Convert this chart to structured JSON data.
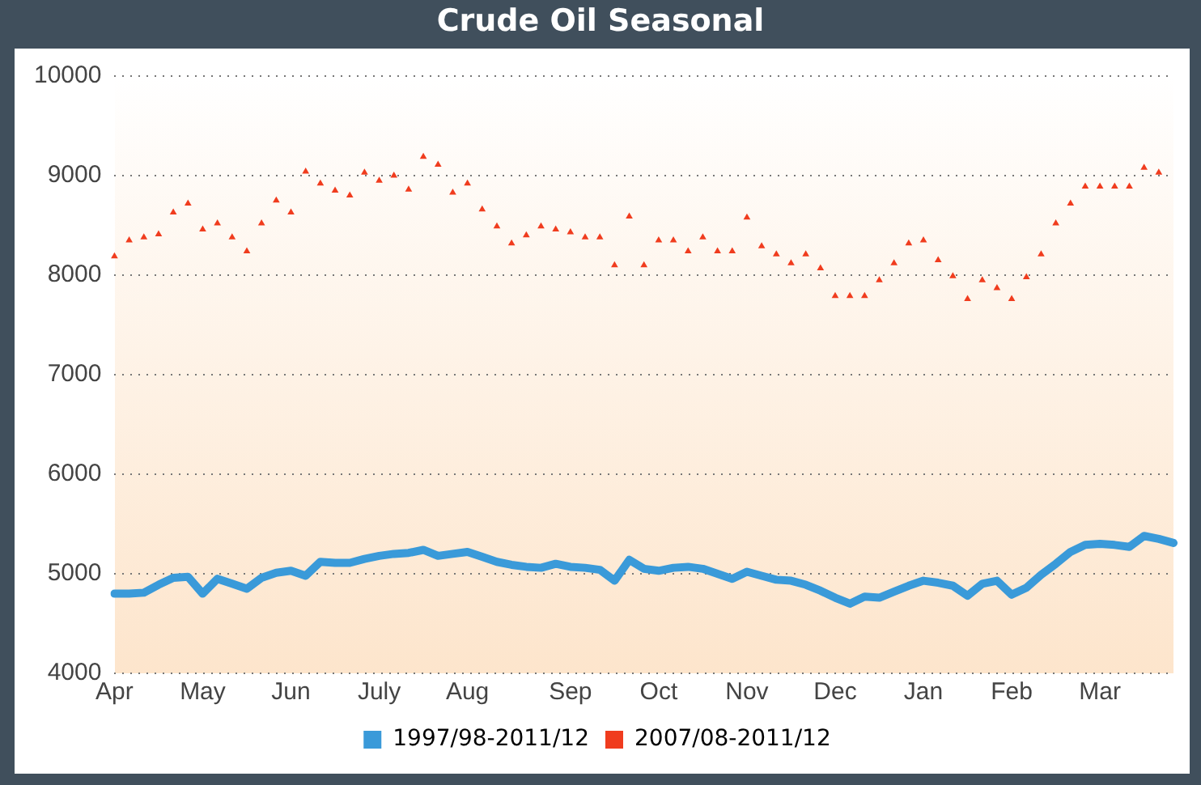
{
  "chart_data": {
    "type": "line",
    "title": "Crude Oil Seasonal",
    "categories": [
      "Apr",
      null,
      null,
      null,
      null,
      null,
      "May",
      null,
      null,
      null,
      null,
      null,
      "Jun",
      null,
      null,
      null,
      null,
      null,
      "July",
      null,
      null,
      null,
      null,
      null,
      "Aug",
      null,
      null,
      null,
      null,
      null,
      null,
      "Sep",
      null,
      null,
      null,
      null,
      null,
      "Oct",
      null,
      null,
      null,
      null,
      null,
      "Nov",
      null,
      null,
      null,
      null,
      null,
      "Dec",
      null,
      null,
      null,
      null,
      null,
      "Jan",
      null,
      null,
      null,
      null,
      null,
      "Feb",
      null,
      null,
      null,
      null,
      null,
      "Mar",
      null,
      null,
      null,
      null,
      null
    ],
    "ylim": [
      4000,
      10000
    ],
    "yticks": [
      4000,
      5000,
      6000,
      7000,
      8000,
      9000,
      10000
    ],
    "grid": "y",
    "legend": "bottom",
    "series": [
      {
        "name": "1997/98-2011/12",
        "color": "#3a9ad9",
        "type": "line",
        "marker": "none",
        "values": [
          4800,
          4800,
          4810,
          4890,
          4960,
          4970,
          4800,
          4950,
          4900,
          4850,
          4960,
          5010,
          5030,
          4980,
          5120,
          5110,
          5110,
          5150,
          5180,
          5200,
          5210,
          5240,
          5180,
          5200,
          5220,
          5170,
          5120,
          5090,
          5070,
          5060,
          5100,
          5070,
          5060,
          5040,
          4930,
          5140,
          5050,
          5030,
          5060,
          5070,
          5050,
          5000,
          4950,
          5020,
          4980,
          4940,
          4930,
          4890,
          4830,
          4760,
          4700,
          4770,
          4760,
          4820,
          4880,
          4930,
          4910,
          4880,
          4780,
          4900,
          4930,
          4790,
          4860,
          4990,
          5100,
          5220,
          5290,
          5300,
          5290,
          5270,
          5380,
          5350,
          5310
        ]
      },
      {
        "name": "2007/08-2011/12",
        "color": "#f03c1e",
        "type": "scatter",
        "marker": "triangle",
        "values": [
          8190,
          8350,
          8380,
          8410,
          8630,
          8720,
          8460,
          8520,
          8380,
          8240,
          8520,
          8750,
          8630,
          9040,
          8920,
          8850,
          8800,
          9030,
          8950,
          9000,
          8860,
          9190,
          9110,
          8830,
          8920,
          8660,
          8490,
          8320,
          8400,
          8490,
          8460,
          8430,
          8380,
          8380,
          8100,
          8590,
          8100,
          8350,
          8350,
          8240,
          8380,
          8240,
          8240,
          8580,
          8290,
          8210,
          8120,
          8210,
          8070,
          7790,
          7790,
          7790,
          7950,
          8120,
          8320,
          8350,
          8150,
          7990,
          7760,
          7950,
          7870,
          7760,
          7980,
          8210,
          8520,
          8720,
          8890,
          8890,
          8890,
          8890,
          9080,
          9030,
          null
        ]
      }
    ]
  }
}
